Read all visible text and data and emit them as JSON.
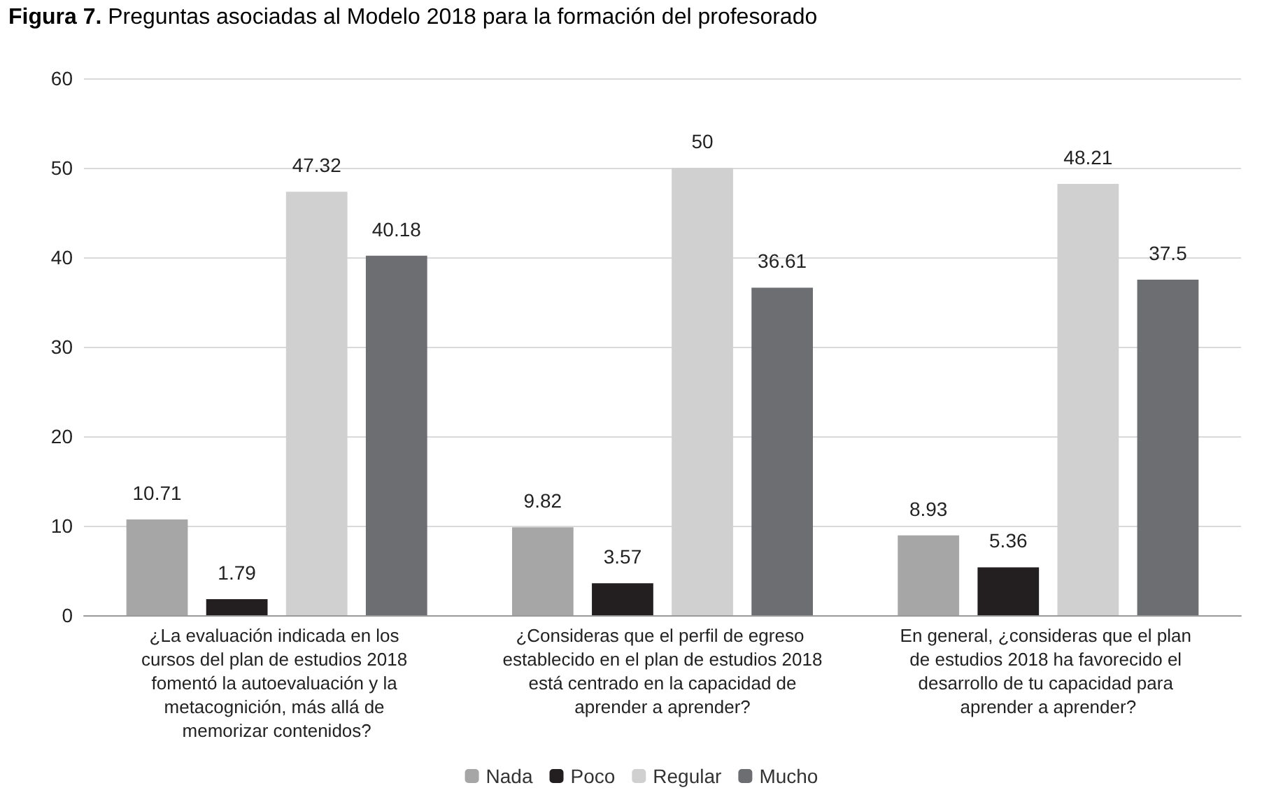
{
  "chart_data": {
    "type": "bar",
    "title": "Figura 7. Preguntas asociadas al Modelo 2018 para la formación del profesorado",
    "categories": [
      "¿La evaluación indicada en los cursos del plan de estudios 2018 fomentó la autoevaluación y la metacognición, más allá de memorizar contenidos?",
      "¿Consideras que el perfil de egreso establecido en el plan de estudios 2018 está centrado en la capacidad de aprender a aprender?",
      "En general, ¿consideras que el plan de estudios 2018 ha favorecido el desarrollo de tu capacidad para aprender a aprender?"
    ],
    "series": [
      {
        "name": "Nada",
        "color": "#a6a6a7",
        "values": [
          10.71,
          9.82,
          8.93
        ]
      },
      {
        "name": "Poco",
        "color": "#231f20",
        "values": [
          1.79,
          3.57,
          5.36
        ]
      },
      {
        "name": "Regular",
        "color": "#d0d0d0",
        "values": [
          47.32,
          50,
          48.21
        ]
      },
      {
        "name": "Mucho",
        "color": "#6d6e71",
        "values": [
          40.18,
          36.61,
          37.5
        ]
      }
    ],
    "ylim": [
      0,
      60
    ],
    "yticks": [
      0,
      10,
      20,
      30,
      40,
      50,
      60
    ],
    "grid": "y",
    "legend": "bottom",
    "data_labels": true
  }
}
